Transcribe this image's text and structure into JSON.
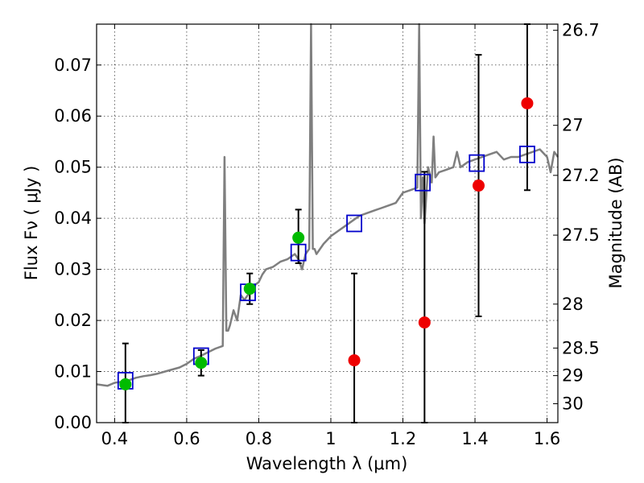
{
  "chart_data": {
    "type": "scatter",
    "xlabel": "Wavelength  λ (μm)",
    "ylabel": "Flux  Fν  ( μJy )",
    "ylabel_right": "Magnitude (AB)",
    "xlim": [
      0.35,
      1.63
    ],
    "ylim": [
      0.0,
      0.078
    ],
    "grid": true,
    "x_ticks": [
      0.4,
      0.6,
      0.8,
      1.0,
      1.2,
      1.4,
      1.6
    ],
    "x_tick_labels": [
      "0.4",
      "0.6",
      "0.8",
      "1",
      "1.2",
      "1.4",
      "1.6"
    ],
    "y_ticks": [
      0.0,
      0.01,
      0.02,
      0.03,
      0.04,
      0.05,
      0.06,
      0.07
    ],
    "y_tick_labels": [
      "0.00",
      "0.01",
      "0.02",
      "0.03",
      "0.04",
      "0.05",
      "0.06",
      "0.07"
    ],
    "right_ticks": [
      {
        "label": "26.7",
        "flux": 0.0768
      },
      {
        "label": "27",
        "flux": 0.0582
      },
      {
        "label": "27.2",
        "flux": 0.0484
      },
      {
        "label": "27.5",
        "flux": 0.0367
      },
      {
        "label": "28",
        "flux": 0.0232
      },
      {
        "label": "28.5",
        "flux": 0.0146
      },
      {
        "label": "29",
        "flux": 0.0092
      },
      {
        "label": "30",
        "flux": 0.0037
      }
    ],
    "series": [
      {
        "kind": "spectrum",
        "color": "#7f7f7f",
        "x": [
          0.35,
          0.38,
          0.4,
          0.42,
          0.44,
          0.46,
          0.48,
          0.5,
          0.52,
          0.54,
          0.56,
          0.58,
          0.6,
          0.62,
          0.64,
          0.66,
          0.68,
          0.7,
          0.705,
          0.71,
          0.715,
          0.72,
          0.73,
          0.74,
          0.75,
          0.76,
          0.77,
          0.78,
          0.79,
          0.8,
          0.81,
          0.82,
          0.84,
          0.86,
          0.88,
          0.9,
          0.91,
          0.92,
          0.93,
          0.94,
          0.945,
          0.95,
          0.955,
          0.96,
          0.98,
          1.0,
          1.02,
          1.04,
          1.06,
          1.08,
          1.1,
          1.12,
          1.14,
          1.16,
          1.18,
          1.2,
          1.22,
          1.24,
          1.245,
          1.25,
          1.255,
          1.26,
          1.27,
          1.28,
          1.285,
          1.29,
          1.3,
          1.32,
          1.34,
          1.35,
          1.36,
          1.38,
          1.4,
          1.42,
          1.44,
          1.46,
          1.48,
          1.5,
          1.52,
          1.54,
          1.56,
          1.58,
          1.6,
          1.61,
          1.62,
          1.63
        ],
        "y": [
          0.0075,
          0.0072,
          0.0078,
          0.008,
          0.0083,
          0.0088,
          0.0091,
          0.0093,
          0.0096,
          0.01,
          0.0104,
          0.0108,
          0.0115,
          0.0125,
          0.0131,
          0.0138,
          0.0145,
          0.015,
          0.052,
          0.018,
          0.018,
          0.019,
          0.022,
          0.02,
          0.025,
          0.024,
          0.025,
          0.0265,
          0.027,
          0.0275,
          0.029,
          0.03,
          0.0305,
          0.0315,
          0.032,
          0.033,
          0.032,
          0.03,
          0.033,
          0.034,
          0.078,
          0.034,
          0.034,
          0.033,
          0.035,
          0.0365,
          0.0375,
          0.0385,
          0.0395,
          0.0405,
          0.041,
          0.0415,
          0.042,
          0.0425,
          0.043,
          0.045,
          0.0455,
          0.046,
          0.078,
          0.04,
          0.048,
          0.039,
          0.05,
          0.047,
          0.056,
          0.048,
          0.049,
          0.0495,
          0.05,
          0.053,
          0.05,
          0.051,
          0.0515,
          0.052,
          0.0525,
          0.053,
          0.0515,
          0.052,
          0.052,
          0.0525,
          0.053,
          0.0535,
          0.052,
          0.049,
          0.053,
          0.052
        ]
      },
      {
        "kind": "model_boxes",
        "color": "#0000cc",
        "x": [
          0.43,
          0.64,
          0.77,
          0.91,
          1.065,
          1.255,
          1.405,
          1.545
        ],
        "y": [
          0.0082,
          0.013,
          0.0255,
          0.0333,
          0.039,
          0.047,
          0.0508,
          0.0525
        ]
      },
      {
        "kind": "detections",
        "color": "#00bb00",
        "x": [
          0.43,
          0.64,
          0.775,
          0.91
        ],
        "y": [
          0.0075,
          0.0117,
          0.0262,
          0.0362
        ],
        "yerr_low": [
          0.0075,
          0.0025,
          0.003,
          0.005
        ],
        "yerr_high": [
          0.008,
          0.0025,
          0.003,
          0.0055
        ]
      },
      {
        "kind": "non_detections",
        "color": "#ee0000",
        "x": [
          1.065,
          1.26,
          1.41,
          1.545
        ],
        "y": [
          0.0122,
          0.0196,
          0.0464,
          0.0625
        ],
        "yerr_low": [
          0.0122,
          0.0196,
          0.0256,
          0.017
        ],
        "yerr_high": [
          0.017,
          0.0295,
          0.0256,
          0.017
        ]
      }
    ]
  }
}
